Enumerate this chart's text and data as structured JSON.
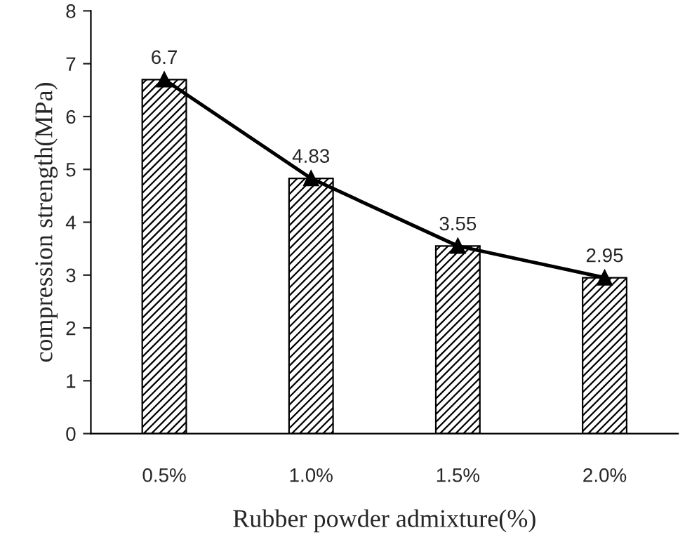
{
  "chart_data": {
    "type": "bar",
    "xlabel": "Rubber powder admixture(%)",
    "ylabel": "compression strength(MPa)",
    "categories": [
      "0.5%",
      "1.0%",
      "1.5%",
      "2.0%"
    ],
    "series": [
      {
        "color": "#000000",
        "values": [
          6.7,
          4.83,
          3.55,
          2.95
        ]
      },
      {
        "type": "line",
        "color": "#000000",
        "values": [
          6.7,
          4.83,
          3.55,
          2.95
        ],
        "value_labels": [
          "6.7",
          "4.83",
          "3.55",
          "2.95"
        ]
      }
    ],
    "ylim": [
      0,
      8
    ],
    "yticks": [
      0,
      1,
      2,
      3,
      4,
      5,
      6,
      7,
      8
    ],
    "marker": "triangle"
  }
}
